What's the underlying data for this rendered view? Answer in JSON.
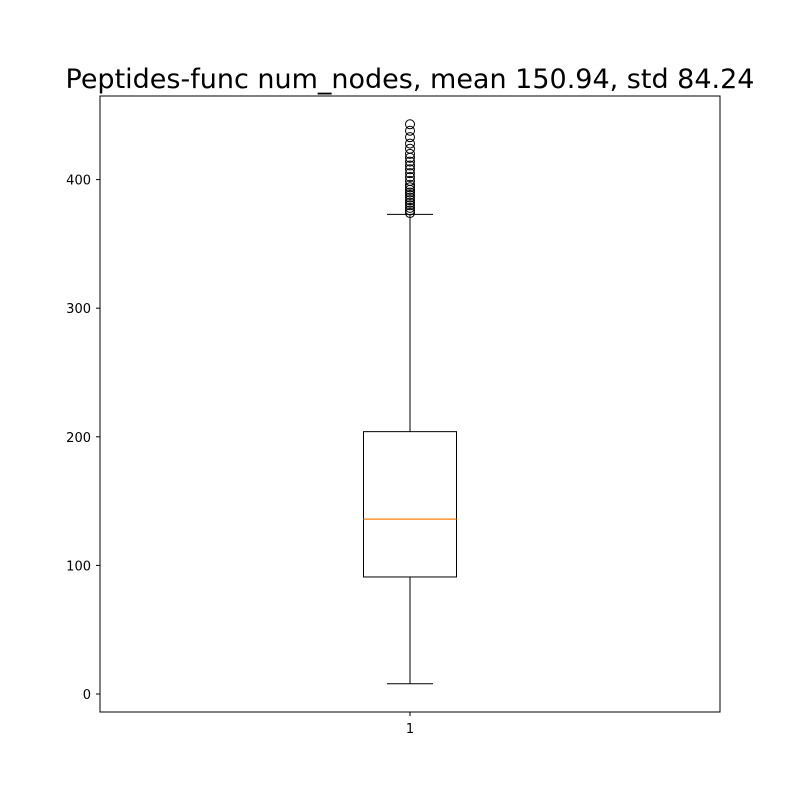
{
  "chart_data": {
    "type": "boxplot",
    "title": "Peptides-func num_nodes, mean 150.94, std 84.24",
    "xlabel": "",
    "ylabel": "",
    "categories": [
      "1"
    ],
    "ylim": [
      -14,
      465
    ],
    "yticks": [
      0,
      100,
      200,
      300,
      400
    ],
    "grid": false,
    "box": {
      "whisker_low": 8,
      "q1": 91,
      "median": 136,
      "q3": 204,
      "whisker_high": 373
    },
    "outliers": [
      374,
      376,
      378,
      380,
      382,
      384,
      386,
      388,
      390,
      392,
      394,
      396,
      399,
      402,
      405,
      408,
      411,
      414,
      417,
      420,
      424,
      428,
      433,
      438,
      443
    ],
    "colors": {
      "box": "#000000",
      "median": "#ff7f0e",
      "whisker": "#000000",
      "outlier": "#000000"
    }
  }
}
